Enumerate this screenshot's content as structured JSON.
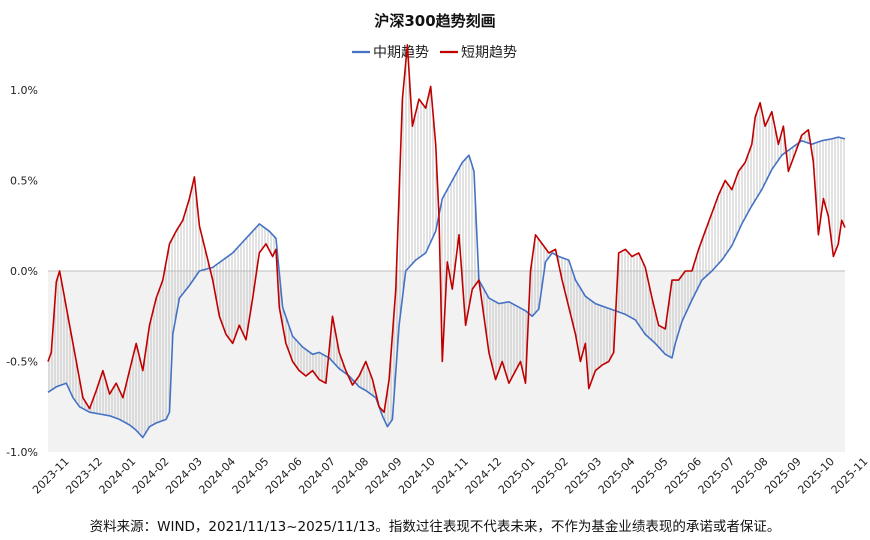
{
  "chart_data": {
    "type": "line",
    "title": "沪深300趋势刻画",
    "legend": {
      "placement": "top-center",
      "entries": [
        "中期趋势",
        "短期趋势"
      ]
    },
    "ylim": [
      -1.0,
      1.0
    ],
    "y_ticks": [
      "1.0%",
      "0.5%",
      "0.0%",
      "-0.5%",
      "-1.0%"
    ],
    "y_tick_values": [
      1.0,
      0.5,
      0.0,
      -0.5,
      -1.0
    ],
    "x_ticks": [
      "2023-11",
      "2023-12",
      "2024-01",
      "2024-02",
      "2024-03",
      "2024-04",
      "2024-05",
      "2024-06",
      "2024-07",
      "2024-08",
      "2024-09",
      "2024-10",
      "2024-11",
      "2024-12",
      "2025-01",
      "2025-02",
      "2025-03",
      "2025-04",
      "2025-05",
      "2025-06",
      "2025-07",
      "2025-08",
      "2025-09",
      "2025-10",
      "2025-11"
    ],
    "x_range_months": [
      0.35,
      24.3
    ],
    "grid": "zero-line with vertical difference bars",
    "colors": {
      "mid": "#4472C4",
      "short": "#C00000",
      "bars": "#c4c4c4",
      "below_zero_fill": "#f2f2f2"
    },
    "series": [
      {
        "name": "中期趋势",
        "points": [
          [
            0.35,
            -0.67
          ],
          [
            0.6,
            -0.64
          ],
          [
            0.9,
            -0.62
          ],
          [
            1.1,
            -0.7
          ],
          [
            1.3,
            -0.75
          ],
          [
            1.6,
            -0.78
          ],
          [
            1.9,
            -0.79
          ],
          [
            2.2,
            -0.8
          ],
          [
            2.5,
            -0.82
          ],
          [
            2.8,
            -0.85
          ],
          [
            3.0,
            -0.88
          ],
          [
            3.2,
            -0.92
          ],
          [
            3.4,
            -0.86
          ],
          [
            3.6,
            -0.84
          ],
          [
            3.9,
            -0.82
          ],
          [
            4.0,
            -0.78
          ],
          [
            4.1,
            -0.35
          ],
          [
            4.3,
            -0.15
          ],
          [
            4.6,
            -0.08
          ],
          [
            4.9,
            0.0
          ],
          [
            5.3,
            0.02
          ],
          [
            5.6,
            0.06
          ],
          [
            5.9,
            0.1
          ],
          [
            6.2,
            0.16
          ],
          [
            6.5,
            0.22
          ],
          [
            6.7,
            0.26
          ],
          [
            7.0,
            0.22
          ],
          [
            7.2,
            0.18
          ],
          [
            7.4,
            -0.2
          ],
          [
            7.7,
            -0.36
          ],
          [
            8.0,
            -0.42
          ],
          [
            8.3,
            -0.46
          ],
          [
            8.5,
            -0.45
          ],
          [
            8.8,
            -0.48
          ],
          [
            9.1,
            -0.54
          ],
          [
            9.4,
            -0.58
          ],
          [
            9.7,
            -0.64
          ],
          [
            9.9,
            -0.66
          ],
          [
            10.2,
            -0.7
          ],
          [
            10.4,
            -0.8
          ],
          [
            10.55,
            -0.86
          ],
          [
            10.7,
            -0.82
          ],
          [
            10.9,
            -0.3
          ],
          [
            11.1,
            0.0
          ],
          [
            11.4,
            0.06
          ],
          [
            11.7,
            0.1
          ],
          [
            12.0,
            0.22
          ],
          [
            12.2,
            0.4
          ],
          [
            12.5,
            0.5
          ],
          [
            12.8,
            0.6
          ],
          [
            13.0,
            0.64
          ],
          [
            13.15,
            0.55
          ],
          [
            13.3,
            -0.05
          ],
          [
            13.6,
            -0.15
          ],
          [
            13.9,
            -0.18
          ],
          [
            14.2,
            -0.17
          ],
          [
            14.5,
            -0.2
          ],
          [
            14.7,
            -0.22
          ],
          [
            14.9,
            -0.25
          ],
          [
            15.1,
            -0.21
          ],
          [
            15.3,
            0.05
          ],
          [
            15.5,
            0.1
          ],
          [
            15.7,
            0.08
          ],
          [
            16.0,
            0.06
          ],
          [
            16.2,
            -0.05
          ],
          [
            16.5,
            -0.14
          ],
          [
            16.8,
            -0.18
          ],
          [
            17.1,
            -0.2
          ],
          [
            17.4,
            -0.22
          ],
          [
            17.7,
            -0.24
          ],
          [
            18.0,
            -0.27
          ],
          [
            18.3,
            -0.35
          ],
          [
            18.6,
            -0.4
          ],
          [
            18.9,
            -0.46
          ],
          [
            19.1,
            -0.48
          ],
          [
            19.2,
            -0.4
          ],
          [
            19.4,
            -0.28
          ],
          [
            19.7,
            -0.16
          ],
          [
            20.0,
            -0.05
          ],
          [
            20.3,
            0.0
          ],
          [
            20.6,
            0.06
          ],
          [
            20.9,
            0.14
          ],
          [
            21.2,
            0.26
          ],
          [
            21.5,
            0.36
          ],
          [
            21.8,
            0.45
          ],
          [
            22.1,
            0.56
          ],
          [
            22.4,
            0.64
          ],
          [
            22.7,
            0.68
          ],
          [
            23.0,
            0.72
          ],
          [
            23.3,
            0.7
          ],
          [
            23.6,
            0.72
          ],
          [
            23.9,
            0.73
          ],
          [
            24.1,
            0.74
          ],
          [
            24.3,
            0.73
          ]
        ]
      },
      {
        "name": "短期趋势",
        "points": [
          [
            0.35,
            -0.5
          ],
          [
            0.45,
            -0.45
          ],
          [
            0.6,
            -0.06
          ],
          [
            0.7,
            0.0
          ],
          [
            0.8,
            -0.1
          ],
          [
            1.0,
            -0.3
          ],
          [
            1.2,
            -0.5
          ],
          [
            1.4,
            -0.7
          ],
          [
            1.6,
            -0.76
          ],
          [
            1.8,
            -0.66
          ],
          [
            2.0,
            -0.55
          ],
          [
            2.2,
            -0.68
          ],
          [
            2.4,
            -0.62
          ],
          [
            2.6,
            -0.7
          ],
          [
            2.8,
            -0.55
          ],
          [
            3.0,
            -0.4
          ],
          [
            3.2,
            -0.55
          ],
          [
            3.4,
            -0.3
          ],
          [
            3.6,
            -0.15
          ],
          [
            3.8,
            -0.05
          ],
          [
            4.0,
            0.15
          ],
          [
            4.2,
            0.22
          ],
          [
            4.4,
            0.28
          ],
          [
            4.6,
            0.4
          ],
          [
            4.75,
            0.52
          ],
          [
            4.9,
            0.25
          ],
          [
            5.1,
            0.1
          ],
          [
            5.3,
            -0.05
          ],
          [
            5.5,
            -0.25
          ],
          [
            5.7,
            -0.35
          ],
          [
            5.9,
            -0.4
          ],
          [
            6.1,
            -0.3
          ],
          [
            6.3,
            -0.38
          ],
          [
            6.5,
            -0.15
          ],
          [
            6.7,
            0.1
          ],
          [
            6.9,
            0.15
          ],
          [
            7.1,
            0.08
          ],
          [
            7.2,
            0.12
          ],
          [
            7.3,
            -0.2
          ],
          [
            7.5,
            -0.4
          ],
          [
            7.7,
            -0.5
          ],
          [
            7.9,
            -0.55
          ],
          [
            8.1,
            -0.58
          ],
          [
            8.3,
            -0.55
          ],
          [
            8.5,
            -0.6
          ],
          [
            8.7,
            -0.62
          ],
          [
            8.9,
            -0.25
          ],
          [
            9.1,
            -0.45
          ],
          [
            9.3,
            -0.55
          ],
          [
            9.5,
            -0.63
          ],
          [
            9.7,
            -0.58
          ],
          [
            9.9,
            -0.5
          ],
          [
            10.1,
            -0.6
          ],
          [
            10.3,
            -0.75
          ],
          [
            10.45,
            -0.78
          ],
          [
            10.6,
            -0.6
          ],
          [
            10.8,
            -0.1
          ],
          [
            11.0,
            0.95
          ],
          [
            11.15,
            1.25
          ],
          [
            11.3,
            0.8
          ],
          [
            11.5,
            0.95
          ],
          [
            11.7,
            0.9
          ],
          [
            11.85,
            1.02
          ],
          [
            12.0,
            0.7
          ],
          [
            12.1,
            0.3
          ],
          [
            12.2,
            -0.5
          ],
          [
            12.35,
            0.05
          ],
          [
            12.5,
            -0.1
          ],
          [
            12.7,
            0.2
          ],
          [
            12.9,
            -0.3
          ],
          [
            13.1,
            -0.1
          ],
          [
            13.3,
            -0.05
          ],
          [
            13.45,
            -0.25
          ],
          [
            13.6,
            -0.45
          ],
          [
            13.8,
            -0.6
          ],
          [
            14.0,
            -0.5
          ],
          [
            14.2,
            -0.62
          ],
          [
            14.4,
            -0.55
          ],
          [
            14.55,
            -0.5
          ],
          [
            14.7,
            -0.62
          ],
          [
            14.85,
            0.0
          ],
          [
            15.0,
            0.2
          ],
          [
            15.2,
            0.15
          ],
          [
            15.4,
            0.1
          ],
          [
            15.6,
            0.12
          ],
          [
            15.8,
            -0.05
          ],
          [
            16.0,
            -0.2
          ],
          [
            16.2,
            -0.35
          ],
          [
            16.35,
            -0.5
          ],
          [
            16.5,
            -0.4
          ],
          [
            16.6,
            -0.65
          ],
          [
            16.8,
            -0.55
          ],
          [
            17.0,
            -0.52
          ],
          [
            17.2,
            -0.5
          ],
          [
            17.35,
            -0.45
          ],
          [
            17.5,
            0.1
          ],
          [
            17.7,
            0.12
          ],
          [
            17.9,
            0.08
          ],
          [
            18.1,
            0.1
          ],
          [
            18.3,
            0.02
          ],
          [
            18.5,
            -0.15
          ],
          [
            18.7,
            -0.3
          ],
          [
            18.9,
            -0.32
          ],
          [
            19.1,
            -0.05
          ],
          [
            19.3,
            -0.05
          ],
          [
            19.5,
            0.0
          ],
          [
            19.7,
            0.0
          ],
          [
            19.9,
            0.12
          ],
          [
            20.1,
            0.22
          ],
          [
            20.3,
            0.32
          ],
          [
            20.5,
            0.42
          ],
          [
            20.7,
            0.5
          ],
          [
            20.9,
            0.45
          ],
          [
            21.1,
            0.55
          ],
          [
            21.3,
            0.6
          ],
          [
            21.5,
            0.7
          ],
          [
            21.6,
            0.85
          ],
          [
            21.75,
            0.93
          ],
          [
            21.9,
            0.8
          ],
          [
            22.1,
            0.88
          ],
          [
            22.3,
            0.7
          ],
          [
            22.45,
            0.8
          ],
          [
            22.6,
            0.55
          ],
          [
            22.8,
            0.65
          ],
          [
            23.0,
            0.75
          ],
          [
            23.2,
            0.78
          ],
          [
            23.35,
            0.6
          ],
          [
            23.5,
            0.2
          ],
          [
            23.65,
            0.4
          ],
          [
            23.8,
            0.3
          ],
          [
            23.95,
            0.08
          ],
          [
            24.1,
            0.15
          ],
          [
            24.2,
            0.28
          ],
          [
            24.3,
            0.24
          ]
        ]
      }
    ]
  },
  "source_note": "资料来源：WIND，2021/11/13~2025/11/13。指数过往表现不代表未来，不作为基金业绩表现的承诺或者保证。"
}
